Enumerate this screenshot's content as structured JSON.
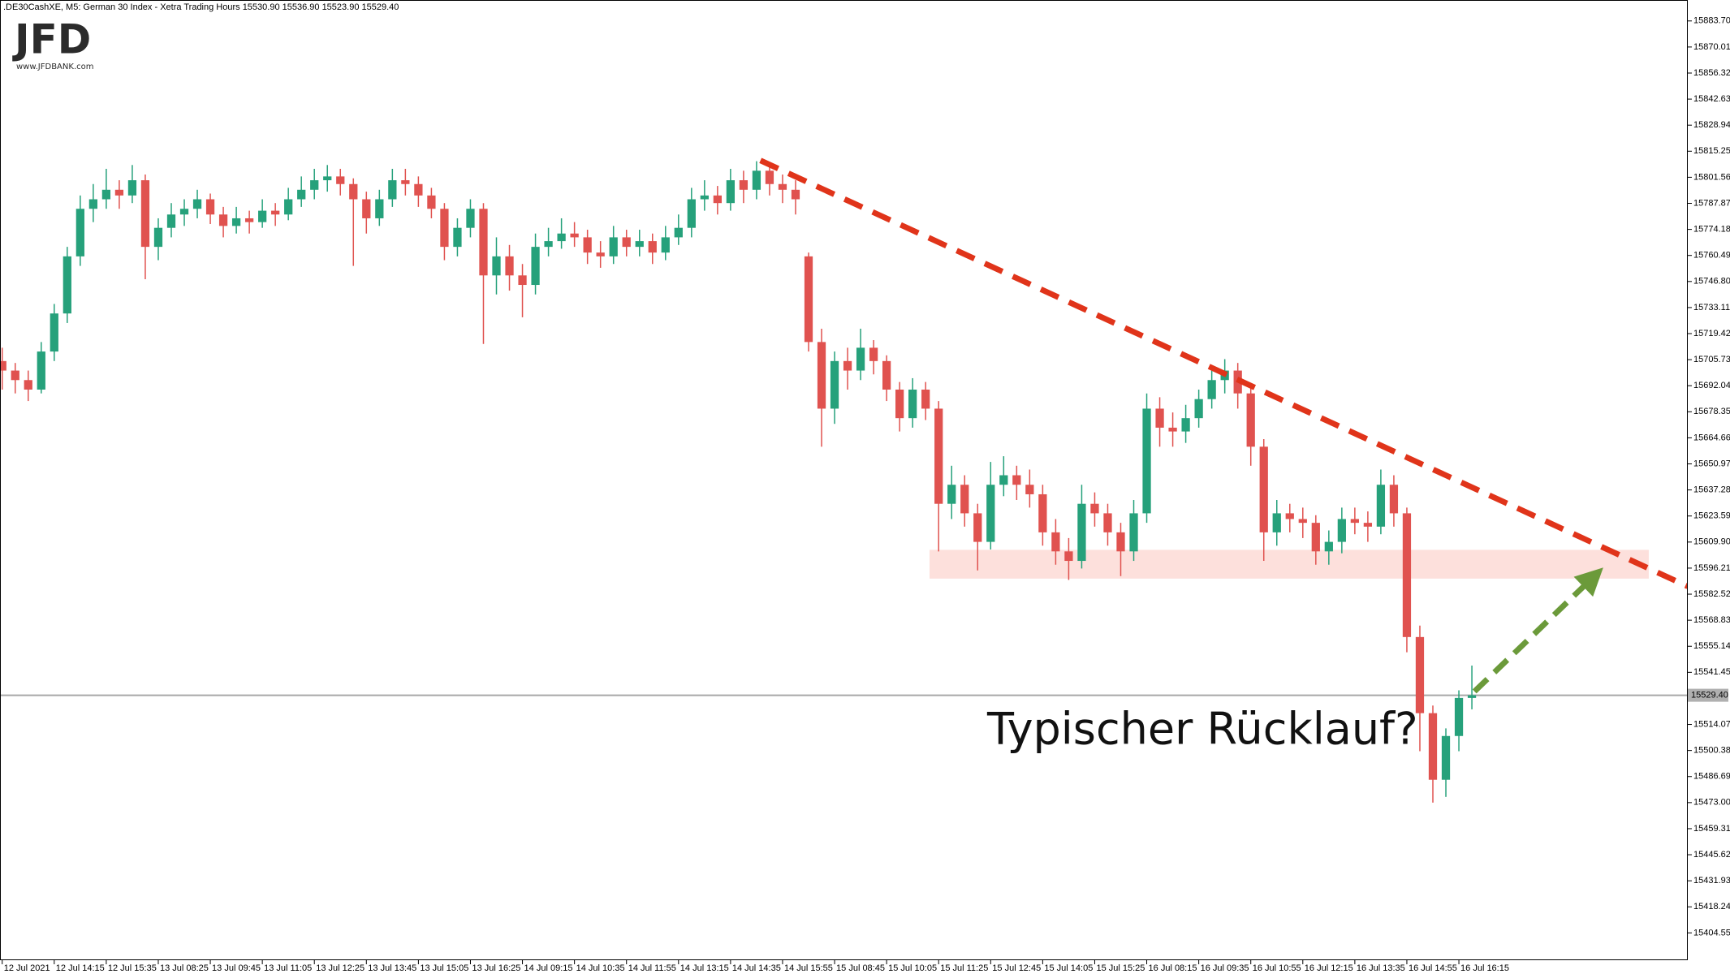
{
  "chart_data": {
    "type": "candlestick",
    "subtitle": ".DE30CashXE, M5:  German 30 Index  - Xetra Trading Hours  15530.90 15536.90 15523.90 15529.40",
    "logo": {
      "name": "JFD",
      "url": "www.JFDBANK.com"
    },
    "annotation": "Typischer Rücklauf?",
    "up_color": "#26a17b",
    "down_color": "#e0524f",
    "ylim": [
      15390.2,
      15894.7
    ],
    "yticks": [
      {
        "value": 15883.7,
        "label": "15883.70"
      },
      15870.01,
      15856.32,
      15842.63,
      15828.94,
      15815.25,
      15801.56,
      15787.87,
      15774.18,
      15760.49,
      {
        "value": 15746.8,
        "label": "15746.80"
      },
      15733.11,
      15719.42,
      15705.73,
      15692.04,
      15678.35,
      15664.66,
      15650.97,
      15637.28,
      15623.59,
      {
        "value": 15609.9,
        "label": "15609.90"
      },
      15596.21,
      15582.52,
      15568.83,
      15555.14,
      15541.45,
      15514.07,
      15500.38,
      15486.69,
      {
        "value": 15473,
        "label": "15473.00"
      },
      15459.31,
      15445.62,
      15431.93,
      15418.24,
      15404.55
    ],
    "last_price": {
      "value": 15529.4,
      "label": "15529.40"
    },
    "zone": {
      "x": [
        71.3,
        126.6
      ],
      "y": [
        15590.7,
        15605.8
      ],
      "color": "#fde0dc"
    },
    "trendline": {
      "x": [
        58.3,
        129.6
      ],
      "y": [
        15810.4,
        15586.6
      ],
      "color": "#e0341a"
    },
    "arrow": {
      "x": [
        113.2,
        123.1
      ],
      "y": [
        15531.4,
        15596.5
      ],
      "color": "#6b9a3a"
    },
    "categories": [
      "12 Jul 2021",
      null,
      null,
      null,
      "12 Jul 14:15",
      null,
      null,
      null,
      "12 Jul 15:35",
      null,
      null,
      null,
      "13 Jul 08:25",
      null,
      null,
      null,
      "13 Jul 09:45",
      null,
      null,
      null,
      "13 Jul 11:05",
      null,
      null,
      null,
      "13 Jul 12:25",
      null,
      null,
      null,
      "13 Jul 13:45",
      null,
      null,
      null,
      "13 Jul 15:05",
      null,
      null,
      null,
      "13 Jul 16:25",
      null,
      null,
      null,
      "14 Jul 09:15",
      null,
      null,
      null,
      "14 Jul 10:35",
      null,
      null,
      null,
      "14 Jul 11:55",
      null,
      null,
      null,
      "14 Jul 13:15",
      null,
      null,
      null,
      "14 Jul 14:35",
      null,
      null,
      null,
      "14 Jul 15:55",
      null,
      null,
      null,
      "15 Jul 08:45",
      null,
      null,
      null,
      "15 Jul 10:05",
      null,
      null,
      null,
      "15 Jul 11:25",
      null,
      null,
      null,
      "15 Jul 12:45",
      null,
      null,
      null,
      "15 Jul 14:05",
      null,
      null,
      null,
      "15 Jul 15:25",
      null,
      null,
      null,
      "16 Jul 08:15",
      null,
      null,
      null,
      "16 Jul 09:35",
      null,
      null,
      null,
      "16 Jul 10:55",
      null,
      null,
      null,
      "16 Jul 12:15",
      null,
      null,
      null,
      "16 Jul 13:35",
      null,
      null,
      null,
      "16 Jul 14:55",
      null,
      null,
      null,
      "16 Jul 16:15",
      null
    ],
    "candles": [
      [
        15705,
        15712,
        15690,
        15700
      ],
      [
        15700,
        15704,
        15688,
        15695
      ],
      [
        15695,
        15700,
        15684,
        15690
      ],
      [
        15690,
        15715,
        15688,
        15710
      ],
      [
        15710,
        15735,
        15705,
        15730
      ],
      [
        15730,
        15765,
        15725,
        15760
      ],
      [
        15760,
        15792,
        15755,
        15785
      ],
      [
        15785,
        15798,
        15778,
        15790
      ],
      [
        15790,
        15806,
        15785,
        15795
      ],
      [
        15795,
        15800,
        15785,
        15792
      ],
      [
        15792,
        15808,
        15788,
        15800
      ],
      [
        15800,
        15803,
        15748,
        15765
      ],
      [
        15765,
        15780,
        15758,
        15775
      ],
      [
        15775,
        15788,
        15770,
        15782
      ],
      [
        15782,
        15790,
        15776,
        15785
      ],
      [
        15785,
        15795,
        15780,
        15790
      ],
      [
        15790,
        15793,
        15777,
        15782
      ],
      [
        15782,
        15786,
        15770,
        15776
      ],
      [
        15776,
        15786,
        15772,
        15780
      ],
      [
        15780,
        15784,
        15772,
        15778
      ],
      [
        15778,
        15790,
        15775,
        15784
      ],
      [
        15784,
        15788,
        15776,
        15782
      ],
      [
        15782,
        15796,
        15779,
        15790
      ],
      [
        15790,
        15802,
        15786,
        15795
      ],
      [
        15795,
        15806,
        15790,
        15800
      ],
      [
        15800,
        15808,
        15794,
        15802
      ],
      [
        15802,
        15806,
        15792,
        15798
      ],
      [
        15798,
        15801,
        15755,
        15790
      ],
      [
        15790,
        15794,
        15772,
        15780
      ],
      [
        15780,
        15795,
        15776,
        15790
      ],
      [
        15790,
        15806,
        15786,
        15800
      ],
      [
        15800,
        15806,
        15792,
        15798
      ],
      [
        15798,
        15802,
        15786,
        15792
      ],
      [
        15792,
        15796,
        15780,
        15785
      ],
      [
        15785,
        15788,
        15758,
        15765
      ],
      [
        15765,
        15780,
        15760,
        15775
      ],
      [
        15775,
        15790,
        15770,
        15785
      ],
      [
        15785,
        15788,
        15714,
        15750
      ],
      [
        15750,
        15770,
        15740,
        15760
      ],
      [
        15760,
        15766,
        15742,
        15750
      ],
      [
        15750,
        15756,
        15728,
        15745
      ],
      [
        15745,
        15772,
        15740,
        15765
      ],
      [
        15765,
        15775,
        15760,
        15768
      ],
      [
        15768,
        15780,
        15764,
        15772
      ],
      [
        15772,
        15778,
        15765,
        15770
      ],
      [
        15770,
        15774,
        15756,
        15762
      ],
      [
        15762,
        15768,
        15754,
        15760
      ],
      [
        15760,
        15776,
        15756,
        15770
      ],
      [
        15770,
        15774,
        15760,
        15765
      ],
      [
        15765,
        15774,
        15760,
        15768
      ],
      [
        15768,
        15772,
        15756,
        15762
      ],
      [
        15762,
        15776,
        15758,
        15770
      ],
      [
        15770,
        15782,
        15766,
        15775
      ],
      [
        15775,
        15796,
        15770,
        15790
      ],
      [
        15790,
        15800,
        15784,
        15792
      ],
      [
        15792,
        15797,
        15782,
        15788
      ],
      [
        15788,
        15806,
        15784,
        15800
      ],
      [
        15800,
        15805,
        15788,
        15795
      ],
      [
        15795,
        15810,
        15790,
        15805
      ],
      [
        15805,
        15808,
        15792,
        15798
      ],
      [
        15798,
        15803,
        15788,
        15795
      ],
      [
        15795,
        15800,
        15782,
        15790
      ],
      [
        15760,
        15762,
        15710,
        15715
      ],
      [
        15715,
        15722,
        15660,
        15680
      ],
      [
        15680,
        15710,
        15672,
        15705
      ],
      [
        15705,
        15712,
        15690,
        15700
      ],
      [
        15700,
        15722,
        15695,
        15712
      ],
      [
        15712,
        15716,
        15698,
        15705
      ],
      [
        15705,
        15708,
        15684,
        15690
      ],
      [
        15690,
        15694,
        15668,
        15675
      ],
      [
        15675,
        15696,
        15670,
        15690
      ],
      [
        15690,
        15694,
        15674,
        15680
      ],
      [
        15680,
        15684,
        15605,
        15630
      ],
      [
        15630,
        15650,
        15622,
        15640
      ],
      [
        15640,
        15645,
        15618,
        15625
      ],
      [
        15625,
        15630,
        15595,
        15610
      ],
      [
        15610,
        15652,
        15606,
        15640
      ],
      [
        15640,
        15655,
        15634,
        15645
      ],
      [
        15645,
        15650,
        15632,
        15640
      ],
      [
        15640,
        15648,
        15628,
        15635
      ],
      [
        15635,
        15640,
        15608,
        15615
      ],
      [
        15615,
        15622,
        15598,
        15605
      ],
      [
        15605,
        15612,
        15590,
        15600
      ],
      [
        15600,
        15640,
        15596,
        15630
      ],
      [
        15630,
        15636,
        15618,
        15625
      ],
      [
        15625,
        15630,
        15608,
        15615
      ],
      [
        15615,
        15620,
        15592,
        15605
      ],
      [
        15605,
        15632,
        15600,
        15625
      ],
      [
        15625,
        15688,
        15620,
        15680
      ],
      [
        15680,
        15686,
        15660,
        15670
      ],
      [
        15670,
        15678,
        15660,
        15668
      ],
      [
        15668,
        15682,
        15662,
        15675
      ],
      [
        15675,
        15690,
        15670,
        15685
      ],
      [
        15685,
        15700,
        15680,
        15695
      ],
      [
        15695,
        15706,
        15688,
        15700
      ],
      [
        15700,
        15704,
        15680,
        15688
      ],
      [
        15688,
        15692,
        15650,
        15660
      ],
      [
        15660,
        15664,
        15600,
        15615
      ],
      [
        15615,
        15632,
        15608,
        15625
      ],
      [
        15625,
        15630,
        15615,
        15622
      ],
      [
        15622,
        15628,
        15612,
        15620
      ],
      [
        15620,
        15624,
        15598,
        15605
      ],
      [
        15605,
        15616,
        15598,
        15610
      ],
      [
        15610,
        15628,
        15604,
        15622
      ],
      [
        15622,
        15628,
        15614,
        15620
      ],
      [
        15620,
        15626,
        15610,
        15618
      ],
      [
        15618,
        15648,
        15614,
        15640
      ],
      [
        15640,
        15645,
        15618,
        15625
      ],
      [
        15625,
        15628,
        15552,
        15560
      ],
      [
        15560,
        15566,
        15500,
        15520
      ],
      [
        15520,
        15524,
        15473,
        15485
      ],
      [
        15485,
        15512,
        15476,
        15508
      ],
      [
        15508,
        15532,
        15500,
        15528
      ],
      [
        15528,
        15545,
        15522,
        15529.4
      ]
    ]
  }
}
